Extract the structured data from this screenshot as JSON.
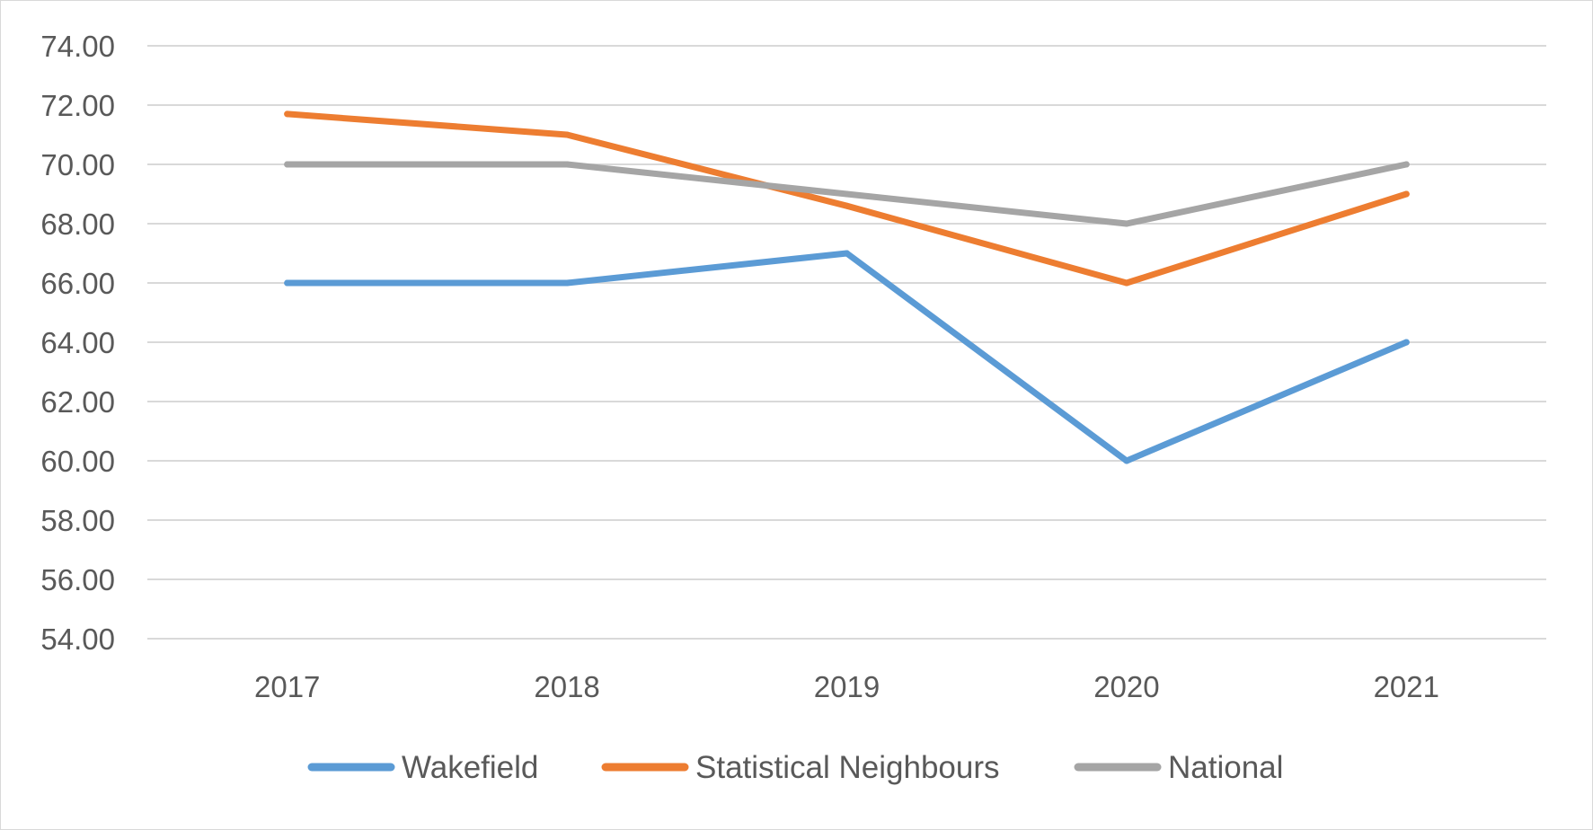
{
  "chart_data": {
    "type": "line",
    "title": "",
    "xlabel": "",
    "ylabel": "",
    "categories": [
      "2017",
      "2018",
      "2019",
      "2020",
      "2021"
    ],
    "ylim": [
      54,
      74
    ],
    "yticks": [
      "54.00",
      "56.00",
      "58.00",
      "60.00",
      "62.00",
      "64.00",
      "66.00",
      "68.00",
      "70.00",
      "72.00",
      "74.00"
    ],
    "grid": "horizontal",
    "legend_position": "bottom",
    "series": [
      {
        "name": "Wakefield",
        "color": "#5b9bd5",
        "values": [
          66,
          66,
          67,
          60,
          64
        ]
      },
      {
        "name": "Statistical Neighbours",
        "color": "#ed7d31",
        "values": [
          71.7,
          71,
          68.6,
          66,
          69
        ]
      },
      {
        "name": "National",
        "color": "#a5a5a5",
        "values": [
          70,
          70,
          69,
          68,
          70
        ]
      }
    ]
  }
}
